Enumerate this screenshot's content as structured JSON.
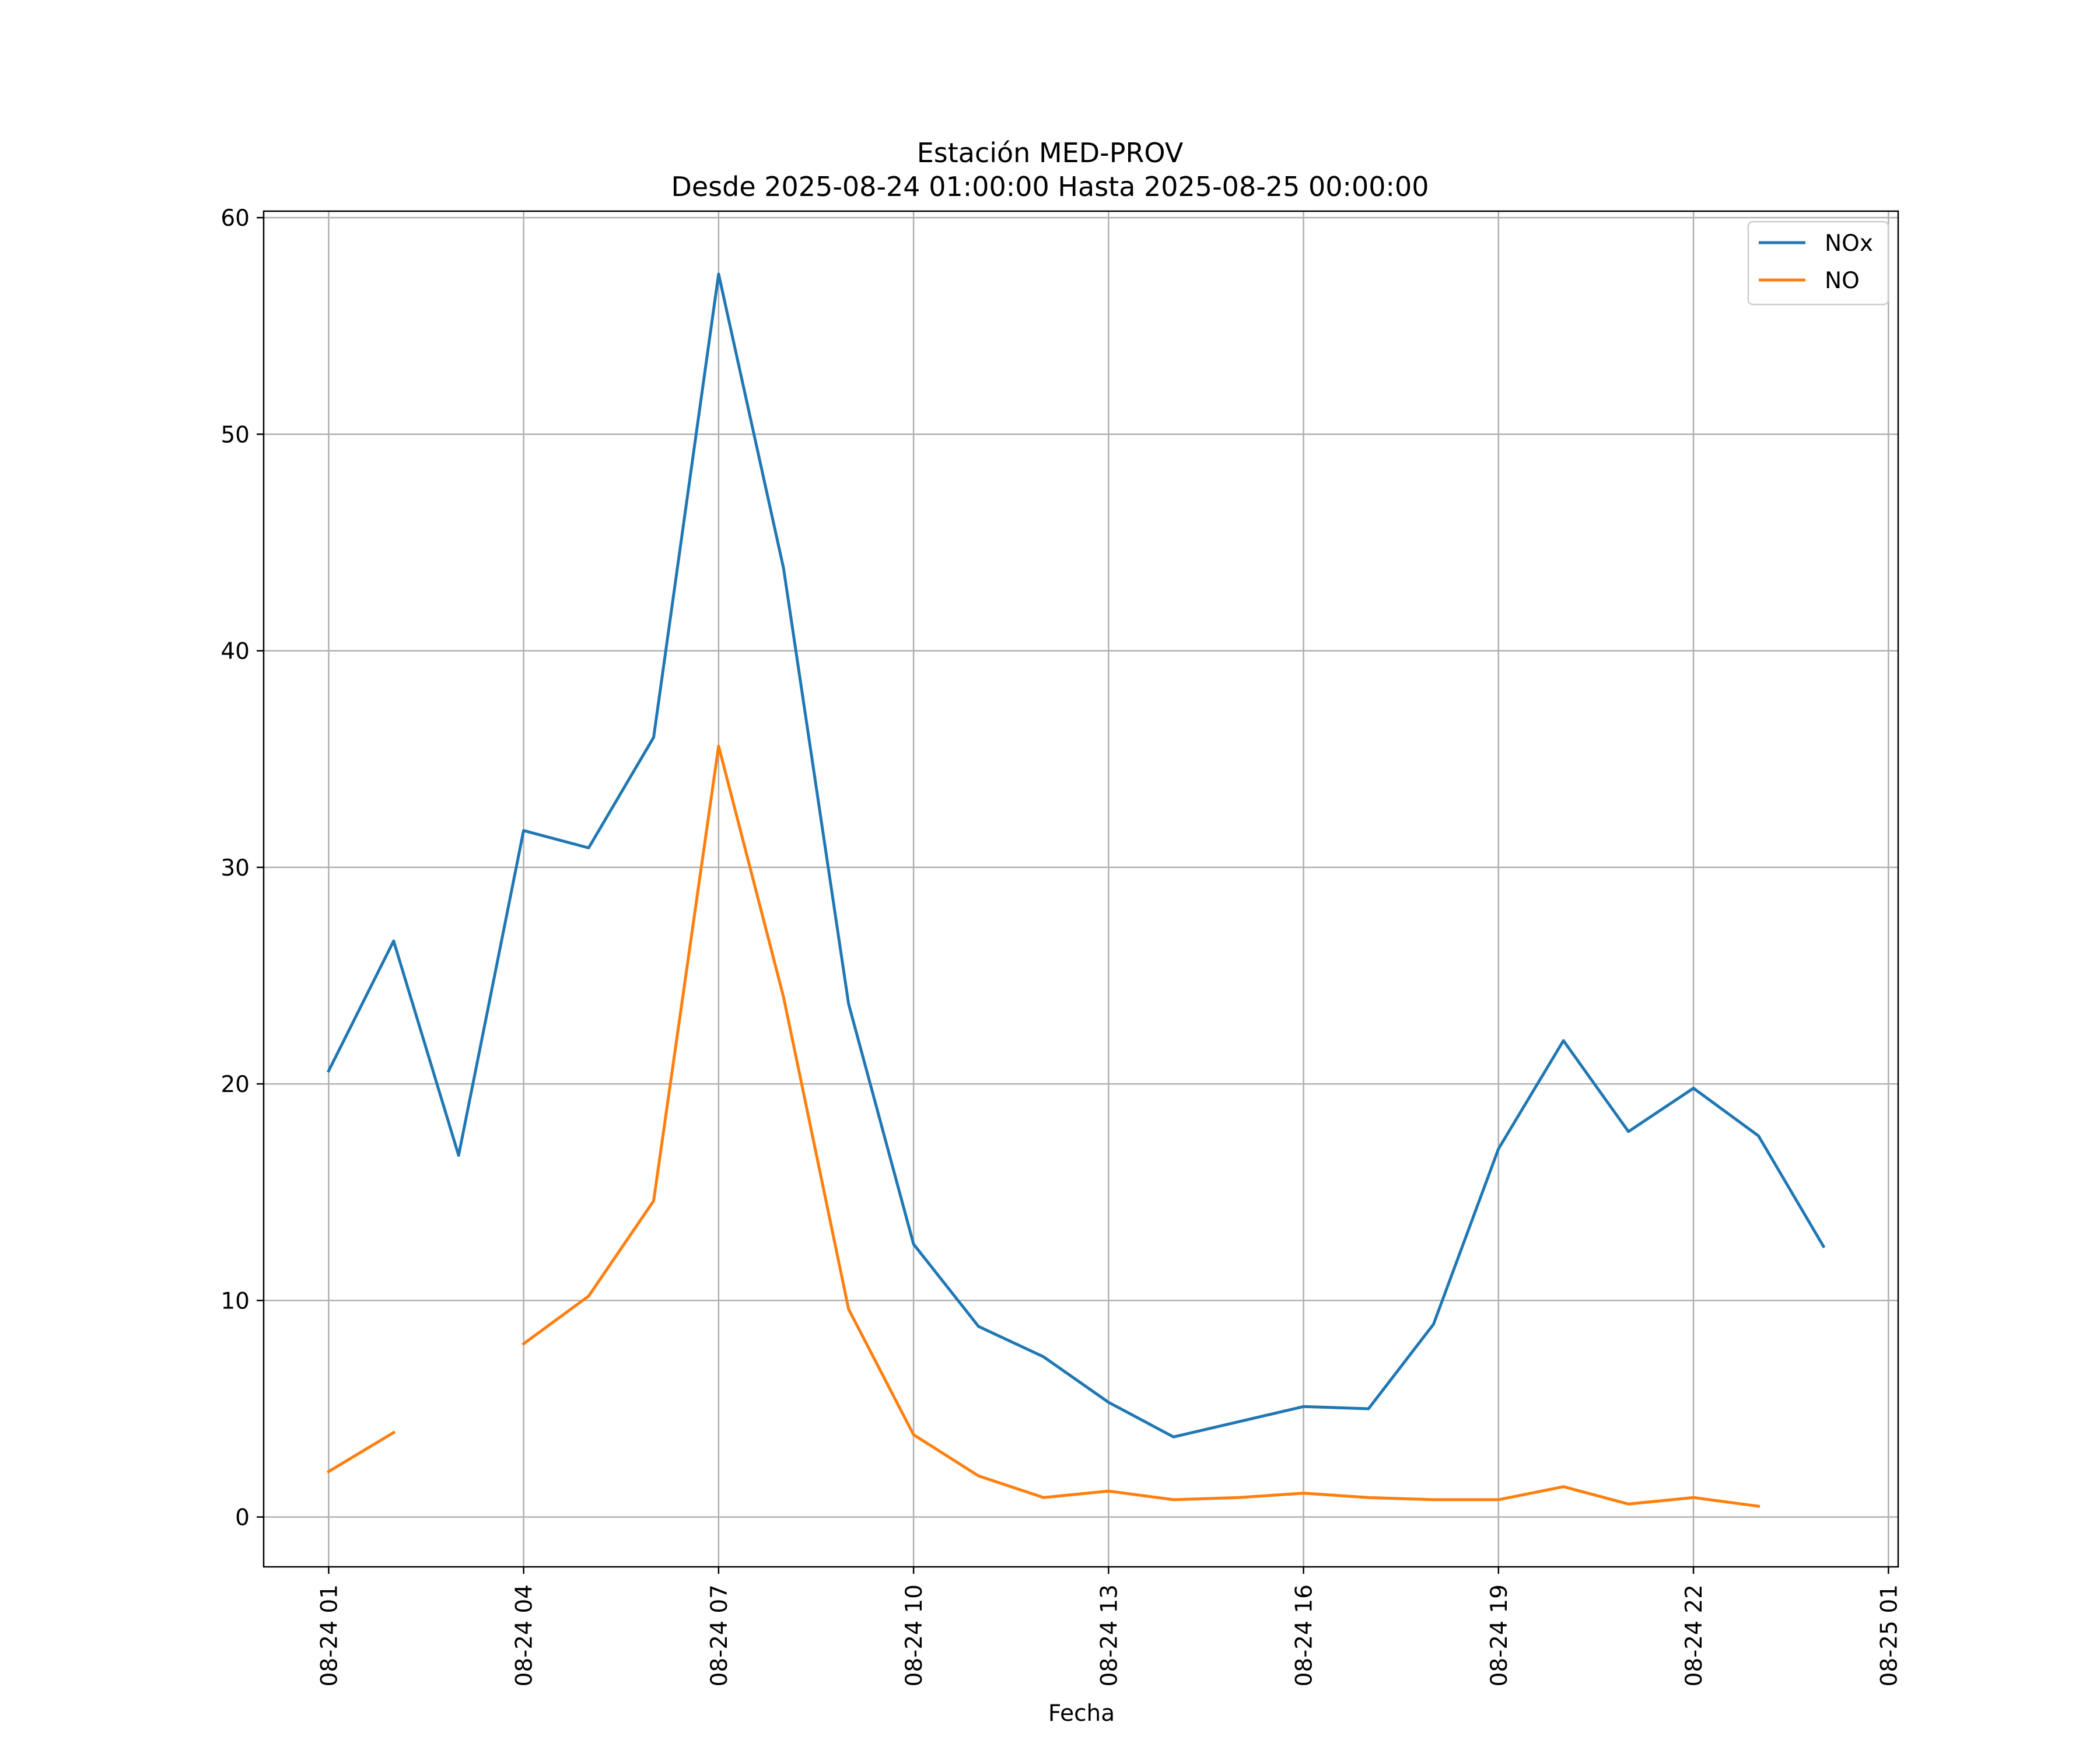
{
  "chart_data": {
    "type": "line",
    "title": "Estación MED-PROV",
    "subtitle": "Desde 2025-08-24 01:00:00 Hasta 2025-08-25 00:00:00",
    "xlabel": "Fecha",
    "ylabel": "",
    "x": [
      "2025-08-24 01:00",
      "2025-08-24 02:00",
      "2025-08-24 03:00",
      "2025-08-24 04:00",
      "2025-08-24 05:00",
      "2025-08-24 06:00",
      "2025-08-24 07:00",
      "2025-08-24 08:00",
      "2025-08-24 09:00",
      "2025-08-24 10:00",
      "2025-08-24 11:00",
      "2025-08-24 12:00",
      "2025-08-24 13:00",
      "2025-08-24 14:00",
      "2025-08-24 15:00",
      "2025-08-24 16:00",
      "2025-08-24 17:00",
      "2025-08-24 18:00",
      "2025-08-24 19:00",
      "2025-08-24 20:00",
      "2025-08-24 21:00",
      "2025-08-24 22:00",
      "2025-08-24 23:00",
      "2025-08-25 00:00"
    ],
    "xlim": [
      "2025-08-24 00:00",
      "2025-08-25 01:09"
    ],
    "x_ticks": [
      {
        "at": "2025-08-24 01:00",
        "label": "08-24 01"
      },
      {
        "at": "2025-08-24 04:00",
        "label": "08-24 04"
      },
      {
        "at": "2025-08-24 07:00",
        "label": "08-24 07"
      },
      {
        "at": "2025-08-24 10:00",
        "label": "08-24 10"
      },
      {
        "at": "2025-08-24 13:00",
        "label": "08-24 13"
      },
      {
        "at": "2025-08-24 16:00",
        "label": "08-24 16"
      },
      {
        "at": "2025-08-24 19:00",
        "label": "08-24 19"
      },
      {
        "at": "2025-08-24 22:00",
        "label": "08-24 22"
      },
      {
        "at": "2025-08-25 01:00",
        "label": "08-25 01"
      }
    ],
    "ylim": [
      -2.3,
      60.3
    ],
    "y_ticks": [
      0,
      10,
      20,
      30,
      40,
      50,
      60
    ],
    "grid": true,
    "legend": "top-right",
    "series": [
      {
        "name": "NOx",
        "color": "#1f77b4",
        "values": [
          20.6,
          26.6,
          16.7,
          31.7,
          30.9,
          36.0,
          57.4,
          43.8,
          23.7,
          12.6,
          8.8,
          7.4,
          5.3,
          3.7,
          4.4,
          5.1,
          5.0,
          8.9,
          17.0,
          22.0,
          17.8,
          19.8,
          17.6,
          12.5
        ]
      },
      {
        "name": "NO",
        "color": "#ff7f0e",
        "values": [
          2.1,
          3.9,
          null,
          8.0,
          10.2,
          14.6,
          35.6,
          24.0,
          9.6,
          3.8,
          1.9,
          0.9,
          1.2,
          0.8,
          0.9,
          1.1,
          0.9,
          0.8,
          0.8,
          1.4,
          0.6,
          0.9,
          0.5,
          null
        ]
      }
    ]
  }
}
